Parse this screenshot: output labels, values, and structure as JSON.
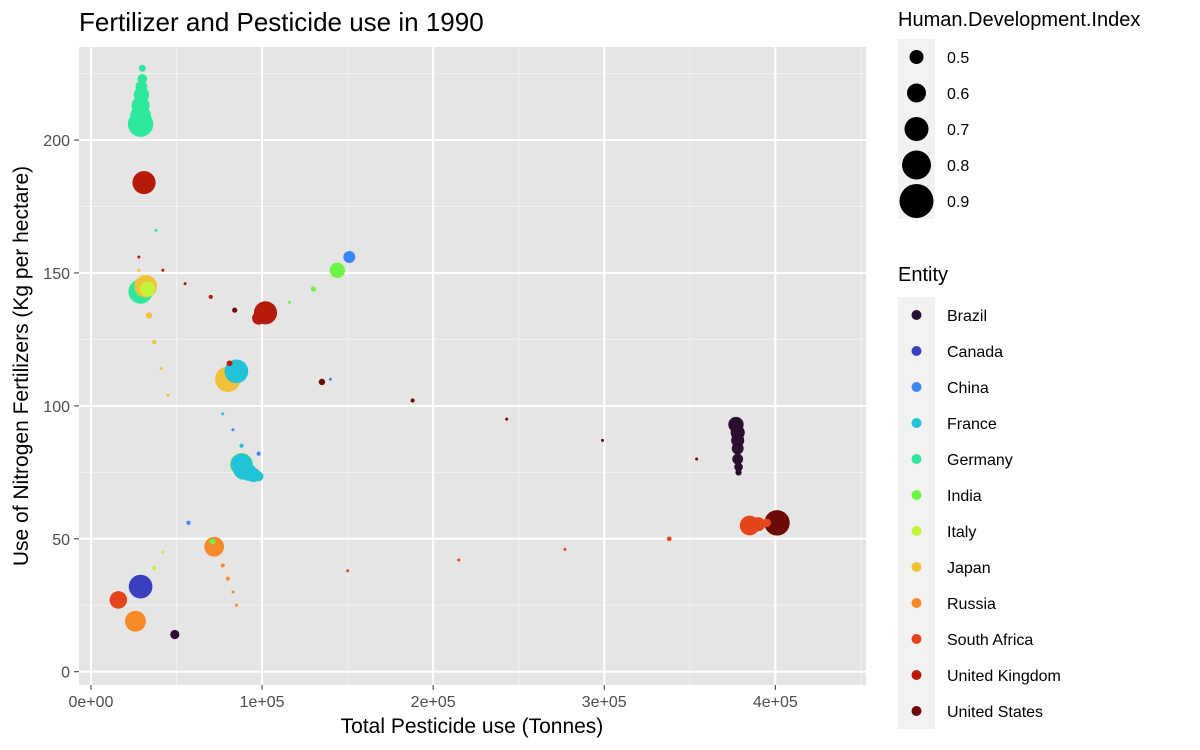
{
  "chart_data": {
    "type": "scatter",
    "title": "Fertilizer and Pesticide use in 1990",
    "xlabel": "Total Pesticide use (Tonnes)",
    "ylabel": "Use of Nitrogen Fertilizers (Kg per hectare)",
    "xlim": [
      -7000,
      453000
    ],
    "ylim": [
      -5,
      235
    ],
    "x_ticks": [
      {
        "value": 0,
        "label": "0e+00"
      },
      {
        "value": 100000,
        "label": "1e+05"
      },
      {
        "value": 200000,
        "label": "2e+05"
      },
      {
        "value": 300000,
        "label": "3e+05"
      },
      {
        "value": 400000,
        "label": "4e+05"
      }
    ],
    "y_ticks": [
      {
        "value": 0,
        "label": "0"
      },
      {
        "value": 50,
        "label": "50"
      },
      {
        "value": 100,
        "label": "100"
      },
      {
        "value": 150,
        "label": "150"
      },
      {
        "value": 200,
        "label": "200"
      }
    ],
    "grid": true,
    "legend_position": "right",
    "size_legend": {
      "title": "Human.Development.Index",
      "entries": [
        {
          "label": "0.5",
          "value": 0.5
        },
        {
          "label": "0.6",
          "value": 0.6
        },
        {
          "label": "0.7",
          "value": 0.7
        },
        {
          "label": "0.8",
          "value": 0.8
        },
        {
          "label": "0.9",
          "value": 0.9
        }
      ]
    },
    "color_legend": {
      "title": "Entity",
      "entries": [
        {
          "label": "Brazil",
          "color": "#2b0f30"
        },
        {
          "label": "Canada",
          "color": "#3a3fbf"
        },
        {
          "label": "China",
          "color": "#3a86f5"
        },
        {
          "label": "France",
          "color": "#22c2d8"
        },
        {
          "label": "Germany",
          "color": "#2ee89c"
        },
        {
          "label": "India",
          "color": "#6df544"
        },
        {
          "label": "Italy",
          "color": "#c2f33a"
        },
        {
          "label": "Japan",
          "color": "#f0c23a"
        },
        {
          "label": "Russia",
          "color": "#f78a28"
        },
        {
          "label": "South Africa",
          "color": "#e5451a"
        },
        {
          "label": "United Kingdom",
          "color": "#b51a0a"
        },
        {
          "label": "United States",
          "color": "#6e0a05"
        }
      ]
    },
    "series": [
      {
        "name": "Brazil",
        "points": [
          [
            49000,
            14,
            0.61
          ],
          [
            377000,
            93,
            0.72
          ],
          [
            378000,
            90,
            0.7
          ],
          [
            378000,
            87,
            0.68
          ],
          [
            378000,
            84,
            0.66
          ],
          [
            378000,
            80,
            0.64
          ],
          [
            378500,
            77,
            0.6
          ],
          [
            378500,
            75,
            0.56
          ]
        ]
      },
      {
        "name": "Canada",
        "points": [
          [
            29000,
            32,
            0.87
          ]
        ]
      },
      {
        "name": "China",
        "points": [
          [
            151000,
            156,
            0.66
          ],
          [
            57000,
            56,
            0.52
          ],
          [
            98000,
            82,
            0.52
          ],
          [
            83000,
            91,
            0.5
          ],
          [
            140000,
            110,
            0.5
          ]
        ]
      },
      {
        "name": "France",
        "points": [
          [
            85000,
            113,
            0.87
          ],
          [
            88000,
            78,
            0.84
          ],
          [
            89000,
            76,
            0.8
          ],
          [
            92000,
            75,
            0.75
          ],
          [
            95000,
            74,
            0.7
          ],
          [
            98000,
            73.5,
            0.62
          ],
          [
            88000,
            85,
            0.52
          ],
          [
            77000,
            97,
            0.5
          ]
        ]
      },
      {
        "name": "Germany",
        "points": [
          [
            29000,
            206,
            0.9
          ],
          [
            29000,
            209,
            0.82
          ],
          [
            29000,
            213,
            0.77
          ],
          [
            29500,
            217,
            0.72
          ],
          [
            29500,
            220,
            0.66
          ],
          [
            30000,
            223,
            0.62
          ],
          [
            30000,
            227,
            0.57
          ],
          [
            29000,
            143,
            0.88
          ],
          [
            38000,
            166,
            0.5
          ]
        ]
      },
      {
        "name": "India",
        "points": [
          [
            144000,
            151,
            0.72
          ],
          [
            130000,
            144,
            0.54
          ],
          [
            116000,
            139,
            0.5
          ],
          [
            71000,
            49,
            0.55
          ]
        ]
      },
      {
        "name": "Italy",
        "points": [
          [
            88000,
            78,
            0.86
          ],
          [
            33000,
            144,
            0.72
          ],
          [
            37000,
            39,
            0.52
          ],
          [
            42000,
            45,
            0.5
          ]
        ]
      },
      {
        "name": "Japan",
        "points": [
          [
            80000,
            110,
            0.9
          ],
          [
            32000,
            145,
            0.85
          ],
          [
            34000,
            134,
            0.56
          ],
          [
            37000,
            124,
            0.52
          ],
          [
            41000,
            114,
            0.5
          ],
          [
            45000,
            104,
            0.5
          ],
          [
            28000,
            151,
            0.5
          ]
        ]
      },
      {
        "name": "Russia",
        "points": [
          [
            72000,
            47,
            0.8
          ],
          [
            26000,
            19,
            0.82
          ],
          [
            77000,
            40,
            0.52
          ],
          [
            80000,
            35,
            0.52
          ],
          [
            83000,
            30,
            0.5
          ],
          [
            85000,
            25,
            0.5
          ]
        ]
      },
      {
        "name": "South Africa",
        "points": [
          [
            385000,
            55,
            0.8
          ],
          [
            390000,
            55.5,
            0.7
          ],
          [
            395000,
            56,
            0.6
          ],
          [
            338000,
            50,
            0.53
          ],
          [
            277000,
            46,
            0.5
          ],
          [
            215000,
            42,
            0.5
          ],
          [
            16000,
            27,
            0.76
          ],
          [
            150000,
            38,
            0.5
          ]
        ]
      },
      {
        "name": "United Kingdom",
        "points": [
          [
            31000,
            184,
            0.86
          ],
          [
            102000,
            135,
            0.86
          ],
          [
            98000,
            133,
            0.68
          ],
          [
            70000,
            141,
            0.52
          ],
          [
            55000,
            146,
            0.5
          ],
          [
            42000,
            151,
            0.5
          ],
          [
            28000,
            156,
            0.5
          ],
          [
            81000,
            116,
            0.55
          ]
        ]
      },
      {
        "name": "United States",
        "points": [
          [
            401000,
            56,
            0.9
          ],
          [
            84000,
            136,
            0.54
          ],
          [
            135000,
            109,
            0.56
          ],
          [
            188000,
            102,
            0.52
          ],
          [
            243000,
            95,
            0.5
          ],
          [
            299000,
            87,
            0.5
          ],
          [
            354000,
            80,
            0.5
          ]
        ]
      }
    ]
  }
}
